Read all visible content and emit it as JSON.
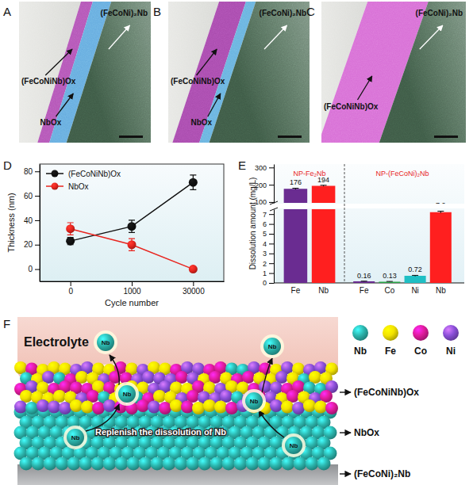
{
  "panel_labels": [
    "A",
    "B",
    "C",
    "D",
    "E",
    "F"
  ],
  "tem_images": [
    {
      "alloy": "(FeCoNi)₂Nb",
      "outer_oxide": "(FeCoNiNb)Ox",
      "inner_oxide": "NbOx"
    },
    {
      "alloy": "(FeCoNi)₂Nb",
      "outer_oxide": "(FeCoNiNb)Ox",
      "inner_oxide": "NbOx"
    },
    {
      "alloy": "(FeCoNi)₂Nb",
      "outer_oxide": "(FeCoNiNb)Ox"
    }
  ],
  "chart_data": [
    {
      "type": "line",
      "categories": [
        "0",
        "1000",
        "30000"
      ],
      "x_label": "Cycle number",
      "y_label": "Thickness (nm)",
      "ylim": [
        -10,
        86
      ],
      "yticks": [
        0,
        20,
        40,
        60,
        80
      ],
      "legend": "top-left",
      "series": [
        {
          "name": "(FeCoNiNb)Ox",
          "color": "#111111",
          "marker": "circle",
          "values": [
            23,
            35,
            71
          ],
          "errors": [
            3,
            5,
            6
          ]
        },
        {
          "name": "NbOx",
          "color": "#e8251f",
          "marker": "circle",
          "values": [
            33,
            20,
            0
          ],
          "errors": [
            5,
            5,
            1
          ]
        }
      ]
    },
    {
      "type": "bar",
      "y_label": "Dissolution amount (mg/L)",
      "ylim": [
        0,
        320
      ],
      "y_break": [
        7.5,
        95
      ],
      "yticks": [
        0,
        1,
        2,
        3,
        4,
        5,
        6,
        7,
        100,
        200,
        300
      ],
      "data_labels": true,
      "groups": [
        {
          "label": "NP-Fe₂Nb",
          "categories": [
            "Fe",
            "Nb"
          ],
          "values": [
            176,
            194
          ],
          "errors": [
            4,
            3
          ],
          "colors": [
            "#6a2c91",
            "#ff1f1f"
          ]
        },
        {
          "label": "NP-(FeCoNi)₂Nb",
          "categories": [
            "Fe",
            "Co",
            "Ni",
            "Nb"
          ],
          "values": [
            0.16,
            0.13,
            0.72,
            7.2
          ],
          "errors": [
            0.02,
            0.02,
            0.05,
            0.1
          ],
          "colors": [
            "#6a2c91",
            "#2ca84a",
            "#1fbfc4",
            "#ff1f1f"
          ]
        }
      ]
    }
  ],
  "schematic": {
    "electrolyte_label": "Electrolyte",
    "layer_labels": [
      "(FeCoNiNb)Ox",
      "NbOx",
      "(FeCoNi)₂Nb"
    ],
    "legend": [
      {
        "label": "Nb",
        "color": "#2bb5ad"
      },
      {
        "label": "Fe",
        "color": "#f2e200"
      },
      {
        "label": "Co",
        "color": "#e01b9c"
      },
      {
        "label": "Ni",
        "color": "#8a4fd8"
      }
    ],
    "ions": [
      "Nb",
      "Nb",
      "Nb",
      "Nb",
      "Nb",
      "Nb"
    ],
    "caption": "Replenish the dissolution of Nb"
  }
}
